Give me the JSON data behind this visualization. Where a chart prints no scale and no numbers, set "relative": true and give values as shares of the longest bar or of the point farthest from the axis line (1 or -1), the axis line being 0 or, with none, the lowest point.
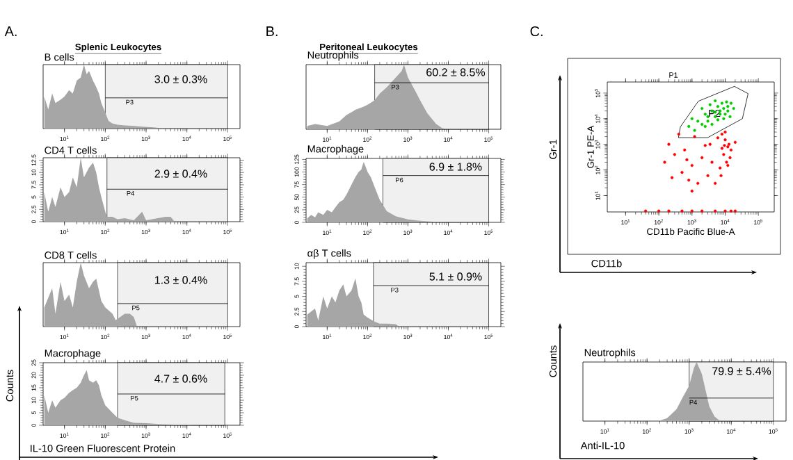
{
  "chart_data": [
    {
      "type": "area",
      "title": "B cells",
      "relative": true,
      "log": "x",
      "xlim": [
        3,
        200000
      ],
      "xticks": [
        {
          "value": 10,
          "label": "10$^{1}$"
        },
        {
          "value": 100,
          "label": "10$^{2}$"
        },
        {
          "value": 1000,
          "label": "10$^{3}$"
        },
        {
          "value": 10000,
          "label": "10$^{4}$"
        },
        {
          "value": 100000,
          "label": "10$^{5}$"
        }
      ],
      "series": [
        {
          "color": "#a6a6a6",
          "x": [
            3.2,
            4,
            5,
            6,
            8,
            10,
            13,
            16,
            20,
            25,
            30,
            35,
            40,
            50,
            60,
            70,
            80,
            100,
            120,
            150,
            200,
            300,
            500,
            800,
            1500,
            2000,
            3000,
            200000
          ],
          "values": [
            0.5,
            0.3,
            0.55,
            0.4,
            0.45,
            0.5,
            0.6,
            0.55,
            0.75,
            0.8,
            1.0,
            0.85,
            0.9,
            0.75,
            0.65,
            0.55,
            0.4,
            0.25,
            0.12,
            0.08,
            0.06,
            0.05,
            0.04,
            0.03,
            0.02,
            0.01,
            0,
            0
          ]
        },
        {
          "type": "line",
          "color": "#000000",
          "x": [
            100,
            100000
          ],
          "values": [
            0.48,
            0.48
          ]
        }
      ],
      "bands": [
        {
          "axis": "x",
          "from": 100,
          "to": 100000,
          "label": "P3"
        }
      ],
      "annotations": [
        "A.",
        "Splenic Leukocytes",
        "3.0 ± 0.3%"
      ]
    },
    {
      "type": "area",
      "title": "CD4 T cells",
      "log": "x",
      "xlim": [
        3,
        200000
      ],
      "ylim": [
        0,
        13
      ],
      "yticks": [
        0,
        2.5,
        5,
        7.5,
        10,
        12.5
      ],
      "xticks": [
        {
          "value": 10,
          "label": "10$^{1}$"
        },
        {
          "value": 100,
          "label": "10$^{2}$"
        },
        {
          "value": 1000,
          "label": "10$^{3}$"
        },
        {
          "value": 10000,
          "label": "10$^{4}$"
        },
        {
          "value": 100000,
          "label": "10$^{5}$"
        }
      ],
      "series": [
        {
          "color": "#a6a6a6",
          "x": [
            3.2,
            4,
            5,
            6,
            8,
            10,
            13,
            16,
            20,
            25,
            30,
            40,
            50,
            60,
            70,
            80,
            100,
            110,
            150,
            200,
            300,
            500,
            800,
            1000,
            3000,
            4000,
            5000,
            200000
          ],
          "values": [
            6,
            2,
            5,
            3,
            7,
            5,
            6,
            9,
            7,
            13,
            9,
            11,
            12,
            10,
            7,
            5,
            2,
            1,
            1,
            0.5,
            0.7,
            0.3,
            2,
            0.3,
            1,
            1,
            0,
            0
          ]
        },
        {
          "type": "line",
          "color": "#000000",
          "x": [
            110,
            100000
          ],
          "values": [
            6.6,
            6.6
          ]
        }
      ],
      "bands": [
        {
          "axis": "x",
          "from": 110,
          "to": 100000,
          "label": "P4"
        }
      ],
      "annotations": [
        "2.9 ± 0.4%"
      ]
    },
    {
      "type": "area",
      "title": "CD8 T cells",
      "relative": true,
      "log": "x",
      "xlim": [
        3,
        200000
      ],
      "xticks": [
        {
          "value": 10,
          "label": "10$^{1}$"
        },
        {
          "value": 100,
          "label": "10$^{2}$"
        },
        {
          "value": 1000,
          "label": "10$^{3}$"
        },
        {
          "value": 10000,
          "label": "10$^{4}$"
        },
        {
          "value": 100000,
          "label": "10$^{5}$"
        }
      ],
      "series": [
        {
          "color": "#a6a6a6",
          "x": [
            3.2,
            5,
            6,
            8,
            10,
            13,
            16,
            20,
            25,
            30,
            40,
            50,
            60,
            80,
            100,
            150,
            180,
            300,
            400,
            500,
            600,
            200000
          ],
          "values": [
            0.3,
            0.6,
            0.2,
            0.7,
            0.4,
            0.5,
            0.3,
            0.7,
            1.0,
            0.8,
            0.6,
            0.7,
            0.75,
            0.4,
            0.3,
            0.2,
            0.1,
            0.2,
            0.2,
            0.15,
            0,
            0
          ]
        },
        {
          "type": "line",
          "color": "#000000",
          "x": [
            200,
            100000
          ],
          "values": [
            0.36,
            0.36
          ]
        }
      ],
      "bands": [
        {
          "axis": "x",
          "from": 200,
          "to": 100000,
          "label": "P5"
        }
      ],
      "annotations": [
        "1.3 ± 0.4%"
      ]
    },
    {
      "type": "area",
      "title": "Macrophage",
      "log": "x",
      "xlim": [
        3,
        200000
      ],
      "ylim": [
        0,
        25
      ],
      "yticks": [
        0,
        5,
        10,
        15,
        20,
        25
      ],
      "xlabel": "IL-10 Green Fluorescent Protein",
      "ylabel": "Counts",
      "xticks": [
        {
          "value": 10,
          "label": "10$^{1}$"
        },
        {
          "value": 100,
          "label": "10$^{2}$"
        },
        {
          "value": 1000,
          "label": "10$^{3}$"
        },
        {
          "value": 10000,
          "label": "10$^{4}$"
        },
        {
          "value": 100000,
          "label": "10$^{5}$"
        }
      ],
      "series": [
        {
          "color": "#a6a6a6",
          "x": [
            3.2,
            4,
            5,
            6,
            8,
            10,
            13,
            16,
            20,
            25,
            30,
            35,
            40,
            50,
            60,
            70,
            80,
            100,
            150,
            200,
            300,
            500,
            1000,
            2000,
            5000,
            12000,
            15000,
            200000
          ],
          "values": [
            12,
            5,
            10,
            7,
            10,
            11,
            13,
            14,
            15,
            17,
            20,
            22,
            18,
            17,
            18,
            16,
            12,
            8,
            5,
            3,
            2,
            1,
            0.8,
            0.5,
            0.3,
            0.3,
            0,
            0
          ]
        },
        {
          "type": "line",
          "color": "#000000",
          "x": [
            200,
            85000
          ],
          "values": [
            12.5,
            12.5
          ]
        }
      ],
      "bands": [
        {
          "axis": "x",
          "from": 200,
          "to": 85000,
          "label": "P5"
        }
      ],
      "annotations": [
        "4.7 ± 0.6%"
      ]
    },
    {
      "type": "area",
      "title": "Neutrophils",
      "relative": true,
      "log": "x",
      "xlim": [
        3,
        200000
      ],
      "xticks": [
        {
          "value": 10,
          "label": "10$^{1}$"
        },
        {
          "value": 100,
          "label": "10$^{2}$"
        },
        {
          "value": 1000,
          "label": "10$^{3}$"
        },
        {
          "value": 10000,
          "label": "10$^{4}$"
        },
        {
          "value": 100000,
          "label": "10$^{5}$"
        }
      ],
      "series": [
        {
          "color": "#a6a6a6",
          "x": [
            3.2,
            5,
            10,
            20,
            30,
            50,
            80,
            100,
            150,
            200,
            300,
            500,
            700,
            800,
            1000,
            1500,
            2000,
            3000,
            5000,
            7000,
            10000,
            200000
          ],
          "values": [
            0.05,
            0.08,
            0.05,
            0.12,
            0.22,
            0.3,
            0.35,
            0.38,
            0.45,
            0.55,
            0.65,
            0.8,
            0.9,
            1.0,
            0.8,
            0.6,
            0.45,
            0.25,
            0.08,
            0.02,
            0,
            0
          ]
        },
        {
          "type": "line",
          "color": "#000000",
          "x": [
            150,
            100000
          ],
          "values": [
            0.72,
            0.72
          ]
        }
      ],
      "bands": [
        {
          "axis": "x",
          "from": 150,
          "to": 100000,
          "label": "P3"
        }
      ],
      "annotations": [
        "B.",
        "Peritoneal Leukocytes",
        "60.2 ± 8.5%"
      ]
    },
    {
      "type": "area",
      "title": "Macrophage",
      "log": "x",
      "xlim": [
        3,
        200000
      ],
      "ylim": [
        0,
        127
      ],
      "yticks": [
        0,
        25,
        50,
        75,
        100,
        125
      ],
      "xticks": [
        {
          "value": 10,
          "label": "10$^{1}$"
        },
        {
          "value": 100,
          "label": "10$^{2}$"
        },
        {
          "value": 1000,
          "label": "10$^{3}$"
        },
        {
          "value": 10000,
          "label": "10$^{4}$"
        },
        {
          "value": 100000,
          "label": "10$^{5}$"
        }
      ],
      "series": [
        {
          "color": "#a6a6a6",
          "x": [
            3.2,
            4,
            5,
            6,
            8,
            10,
            13,
            16,
            20,
            25,
            30,
            40,
            50,
            60,
            70,
            80,
            90,
            100,
            120,
            150,
            200,
            300,
            500,
            1000,
            2000,
            5000,
            10000,
            200000
          ],
          "values": [
            8,
            15,
            10,
            20,
            15,
            25,
            20,
            30,
            40,
            45,
            55,
            75,
            90,
            100,
            105,
            120,
            110,
            100,
            90,
            70,
            45,
            22,
            12,
            6,
            3,
            1,
            0,
            0
          ]
        },
        {
          "type": "line",
          "color": "#000000",
          "x": [
            240,
            100000
          ],
          "values": [
            93,
            93
          ]
        }
      ],
      "bands": [
        {
          "axis": "x",
          "from": 240,
          "to": 100000,
          "label": "P6"
        }
      ],
      "annotations": [
        "6.9 ± 1.8%"
      ]
    },
    {
      "type": "area",
      "title": "αβ T cells",
      "log": "x",
      "xlim": [
        3,
        200000
      ],
      "ylim": [
        0,
        10.6
      ],
      "yticks": [
        0,
        2.5,
        5,
        7.5,
        10
      ],
      "xticks": [
        {
          "value": 10,
          "label": "10$^{1}$"
        },
        {
          "value": 100,
          "label": "10$^{2}$"
        },
        {
          "value": 1000,
          "label": "10$^{3}$"
        },
        {
          "value": 10000,
          "label": "10$^{4}$"
        },
        {
          "value": 100000,
          "label": "10$^{5}$"
        }
      ],
      "series": [
        {
          "color": "#a6a6a6",
          "x": [
            3.2,
            5,
            6,
            8,
            10,
            13,
            16,
            20,
            25,
            30,
            40,
            50,
            60,
            70,
            80,
            100,
            150,
            200,
            300,
            500,
            600,
            200000
          ],
          "values": [
            2,
            3,
            1,
            5,
            3,
            5,
            4,
            6,
            7,
            5,
            6,
            8,
            5,
            4,
            2,
            1.5,
            0.8,
            0.5,
            0.5,
            0.4,
            0,
            0
          ]
        },
        {
          "type": "line",
          "color": "#000000",
          "x": [
            140,
            100000
          ],
          "values": [
            6.8,
            6.8
          ]
        }
      ],
      "bands": [
        {
          "axis": "x",
          "from": 140,
          "to": 100000,
          "label": "P3"
        }
      ],
      "annotations": [
        "5.1 ± 0.9%"
      ]
    },
    {
      "type": "scatter",
      "marker": "circle",
      "log": "xy",
      "xlim": [
        2.8,
        300000
      ],
      "ylim": [
        2.3,
        270000
      ],
      "xlabel": "CD11b Pacific Blue-A",
      "ylabel": "Gr-1 PE-A",
      "xticks": [
        {
          "value": 10,
          "label": "10$^{1}$"
        },
        {
          "value": 100,
          "label": "10$^{2}$"
        },
        {
          "value": 1000,
          "label": "10$^{3}$"
        },
        {
          "value": 10000,
          "label": "10$^{4}$"
        },
        {
          "value": 100000,
          "label": "10$^{5}$"
        }
      ],
      "yticks": [
        {
          "value": 10,
          "label": "10$^{1}$"
        },
        {
          "value": 100,
          "label": "10$^{2}$"
        },
        {
          "value": 1000,
          "label": "10$^{3}$"
        },
        {
          "value": 10000,
          "label": "10$^{4}$"
        },
        {
          "value": 100000,
          "label": "10$^{5}$"
        }
      ],
      "series": [
        {
          "color": "#ff0000",
          "x": [
            8000,
            10000,
            12000,
            9000,
            11000,
            7000,
            13000,
            15000,
            6000,
            10000,
            14000,
            8000,
            20000,
            9500,
            12000,
            7500,
            2000,
            1000,
            500,
            300,
            200,
            150,
            800,
            1500,
            3000,
            4000,
            2500,
            600,
            1200,
            400,
            5000,
            1000,
            250,
            3500,
            700,
            40,
            100,
            200,
            500,
            1000,
            2000,
            5000,
            10000,
            15000,
            20000
          ],
          "values": [
            2500,
            1500,
            800,
            400,
            200,
            120,
            1000,
            600,
            1800,
            3000,
            300,
            700,
            1200,
            900,
            150,
            60,
            300,
            150,
            80,
            400,
            1000,
            200,
            40,
            30,
            60,
            200,
            900,
            600,
            2000,
            2500,
            30,
            15,
            50,
            1000,
            250,
            2.5,
            2.5,
            2.5,
            2.5,
            2.5,
            2.5,
            2.5,
            2.5,
            2.5,
            2.5
          ]
        },
        {
          "color": "#00cc00",
          "x": [
            1200,
            2000,
            3000,
            5000,
            7000,
            9000,
            12000,
            15000,
            6000,
            4000,
            2500,
            1500,
            800,
            1000,
            3500,
            8000,
            10000,
            6000,
            4000,
            2000,
            5000,
            12000,
            18000,
            7000,
            3000,
            9000,
            5000,
            2500,
            14000,
            11000
          ],
          "values": [
            3500,
            6000,
            8000,
            12000,
            20000,
            25000,
            30000,
            40000,
            30000,
            20000,
            15000,
            8000,
            5000,
            10000,
            35000,
            40000,
            15000,
            9000,
            6000,
            25000,
            50000,
            20000,
            25000,
            15000,
            12000,
            10000,
            18000,
            5000,
            12000,
            45000
          ]
        },
        {
          "type": "line",
          "marker": "none",
          "color": "#000000",
          "x": [
            390,
            447,
            1550,
            19000,
            49000
          ],
          "values": [
            1820,
            4800,
            48000,
            182000,
            95000
          ]
        },
        {
          "type": "line",
          "marker": "none",
          "color": "#000000",
          "x": [
            390,
            2950,
            33000,
            49000
          ],
          "values": [
            1820,
            1820,
            10000,
            95000
          ]
        }
      ],
      "annotations": [
        "C.",
        "P1",
        "P2",
        "Gr-1",
        "CD11b"
      ]
    },
    {
      "type": "area",
      "title": "Neutrophils",
      "relative": true,
      "log": "x",
      "xlim": [
        3,
        200000
      ],
      "xlabel": "Anti-IL-10",
      "ylabel": "Counts",
      "xticks": [
        {
          "value": 10,
          "label": "10$^{1}$"
        },
        {
          "value": 100,
          "label": "10$^{2}$"
        },
        {
          "value": 1000,
          "label": "10$^{3}$"
        },
        {
          "value": 10000,
          "label": "10$^{4}$"
        },
        {
          "value": 100000,
          "label": "10$^{5}$"
        }
      ],
      "series": [
        {
          "color": "#a6a6a6",
          "x": [
            3,
            100,
            200,
            300,
            500,
            700,
            1000,
            1300,
            1500,
            2000,
            2500,
            3000,
            4000,
            5000,
            7000,
            200000
          ],
          "values": [
            0,
            0,
            0.01,
            0.05,
            0.2,
            0.4,
            0.6,
            0.9,
            1.0,
            0.8,
            0.5,
            0.25,
            0.08,
            0.02,
            0,
            0
          ]
        },
        {
          "type": "line",
          "color": "#000000",
          "x": [
            1000,
            100000
          ],
          "values": [
            0.39,
            0.39
          ]
        }
      ],
      "bands": [
        {
          "axis": "x",
          "from": 1000,
          "to": 100000,
          "label": "P4"
        }
      ],
      "annotations": [
        "79.9 ± 5.4%"
      ]
    }
  ]
}
